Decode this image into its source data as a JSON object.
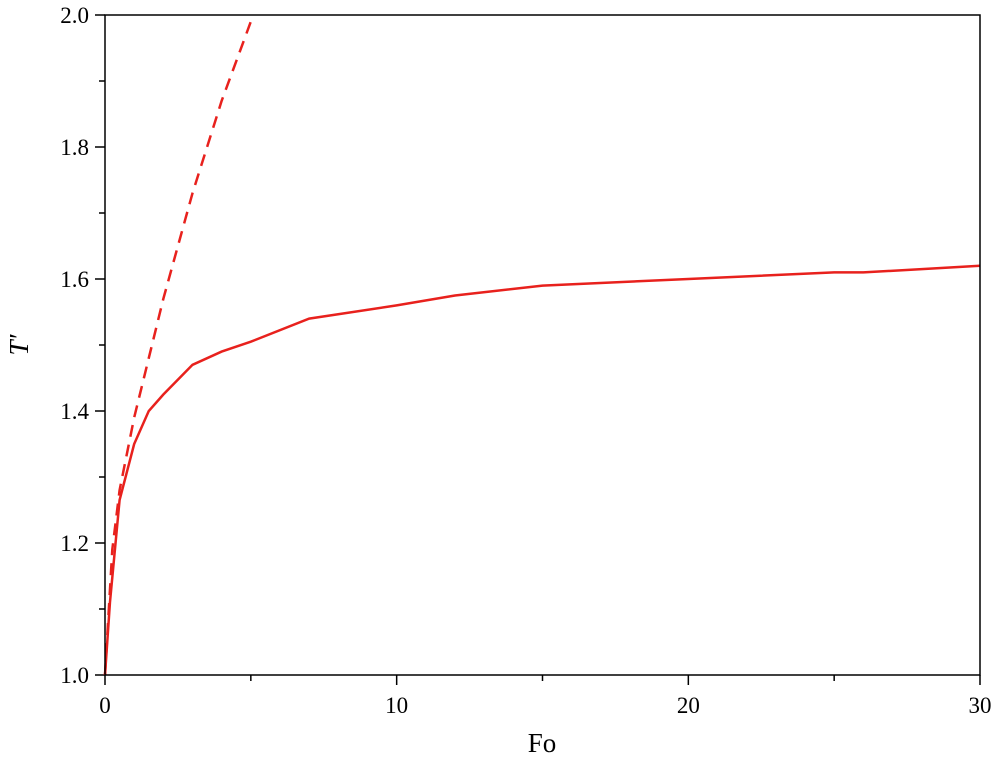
{
  "chart_data": {
    "type": "line",
    "x_label": "Fo",
    "y_label": "T′",
    "xlim": [
      0,
      30
    ],
    "ylim": [
      1.0,
      2.0
    ],
    "xticks": [
      0,
      10,
      20,
      30
    ],
    "xminorticks": [
      5,
      15,
      25
    ],
    "yticks": [
      {
        "value": 1.0,
        "label": "1.0"
      },
      1.2,
      1.4,
      1.6,
      1.8,
      {
        "value": 2.0,
        "label": "2.0"
      }
    ],
    "yminorticks": [
      1.1,
      1.3,
      1.5,
      1.7,
      1.9
    ],
    "series": [
      {
        "color": "#e8211d",
        "dash": false,
        "x": [
          0,
          0.17,
          0.5,
          1,
          1.5,
          2,
          3,
          4,
          5,
          7,
          10,
          12,
          15,
          20,
          25,
          26,
          28,
          30
        ],
        "values": [
          1.0,
          1.11,
          1.265,
          1.35,
          1.4,
          1.425,
          1.47,
          1.49,
          1.505,
          1.54,
          1.56,
          1.575,
          1.59,
          1.6,
          1.61,
          1.61,
          1.615,
          1.62
        ]
      },
      {
        "color": "#e8211d",
        "dash": true,
        "x": [
          0,
          0.25,
          0.5,
          1,
          2,
          3,
          4,
          5
        ],
        "values": [
          1.0,
          1.19,
          1.28,
          1.39,
          1.57,
          1.73,
          1.87,
          1.99
        ]
      }
    ]
  }
}
